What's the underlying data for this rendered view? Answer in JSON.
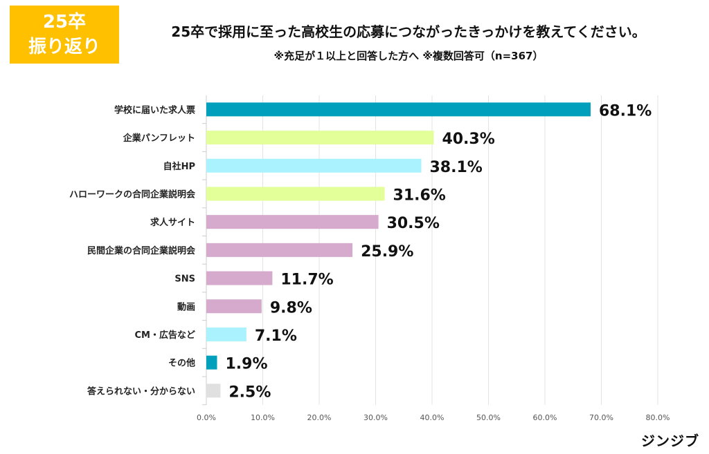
{
  "badge": {
    "line1": "25卒",
    "line2": "振り返り"
  },
  "title": "25卒で採用に至った高校生の応募につながったきっかけを教えてください。",
  "subtitle": "※充足が１以上と回答した方へ ※複数回答可（n=367）",
  "logo": "ジンジブ",
  "chart_data": {
    "type": "bar",
    "orientation": "horizontal",
    "categories": [
      "学校に届いた求人票",
      "企業パンフレット",
      "自社HP",
      "ハローワークの合同企業説明会",
      "求人サイト",
      "民間企業の合同企業説明会",
      "SNS",
      "動画",
      "CM・広告など",
      "その他",
      "答えられない・分からない"
    ],
    "values": [
      68.1,
      40.3,
      38.1,
      31.6,
      30.5,
      25.9,
      11.7,
      9.8,
      7.1,
      1.9,
      2.5
    ],
    "labels": [
      "68.1%",
      "40.3%",
      "38.1%",
      "31.6%",
      "30.5%",
      "25.9%",
      "11.7%",
      "9.8%",
      "7.1%",
      "1.9%",
      "2.5%"
    ],
    "colors": [
      "#00A0BC",
      "#E2FF99",
      "#AAF2FE",
      "#E2FF99",
      "#D5AACC",
      "#D5AACC",
      "#D5AACC",
      "#D5AACC",
      "#AAF2FE",
      "#00A0BC",
      "#E0E0E0"
    ],
    "xlim": [
      0,
      80
    ],
    "xticks": [
      "0.0%",
      "10.0%",
      "20.0%",
      "30.0%",
      "40.0%",
      "50.0%",
      "60.0%",
      "70.0%",
      "80.0%"
    ],
    "grid": true
  }
}
